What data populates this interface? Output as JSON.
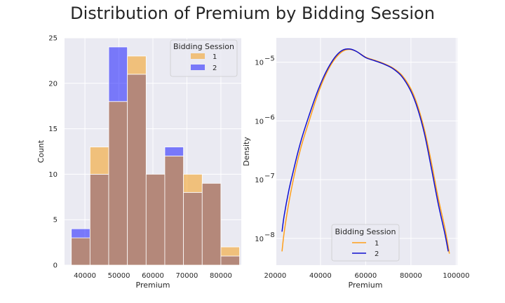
{
  "figure_title": "Distribution of Premium by Bidding Session",
  "colors": {
    "session1": "#f3a32b",
    "session2": "#1a1aff",
    "overlap": "#b4887a",
    "line1": "#ff9f1a",
    "line2": "#1010d0",
    "panel_bg": "#eaeaf2"
  },
  "chart_data": [
    {
      "type": "histogram",
      "xlabel": "Premium",
      "ylabel": "Count",
      "xlim": [
        34000,
        86000
      ],
      "ylim": [
        0,
        25
      ],
      "x_ticks": [
        40000,
        50000,
        60000,
        70000,
        80000
      ],
      "y_ticks": [
        0,
        5,
        10,
        15,
        20,
        25
      ],
      "bin_edges": [
        36000,
        41500,
        47000,
        52500,
        58000,
        63500,
        69000,
        74500,
        80000,
        85500
      ],
      "grid": true,
      "legend": {
        "title": "Bidding Session",
        "placement": "top-right",
        "entries": [
          "1",
          "2"
        ]
      },
      "series": [
        {
          "name": "1",
          "counts": [
            3,
            13,
            18,
            23,
            10,
            12,
            10,
            9,
            2
          ]
        },
        {
          "name": "2",
          "counts": [
            4,
            10,
            24,
            21,
            10,
            13,
            8,
            9,
            1
          ]
        }
      ]
    },
    {
      "type": "line",
      "xlabel": "Premium",
      "ylabel": "Density",
      "xscale": "linear",
      "yscale": "log",
      "xlim": [
        20500,
        100500
      ],
      "ylim": [
        3.5e-09,
        2.6e-05
      ],
      "x_ticks": [
        20000,
        40000,
        60000,
        80000,
        100000
      ],
      "y_ticks": [
        1e-08,
        1e-07,
        1e-06,
        1e-05
      ],
      "y_tick_labels": [
        "10",
        "10",
        "10",
        "10"
      ],
      "y_tick_exponents": [
        "−8",
        "−7",
        "−6",
        "−5"
      ],
      "grid": true,
      "legend": {
        "title": "Bidding Session",
        "placement": "bottom-center",
        "entries": [
          "1",
          "2"
        ]
      },
      "series": [
        {
          "name": "1",
          "x": [
            23000,
            24000,
            26000,
            28000,
            30000,
            32000,
            35000,
            38000,
            41000,
            44000,
            47000,
            50000,
            53000,
            56000,
            60000,
            64000,
            68000,
            72000,
            76000,
            80000,
            83000,
            86000,
            89000,
            92000,
            95000,
            97000
          ],
          "y": [
            6e-09,
            1.3e-08,
            4e-08,
            1e-07,
            2.2e-07,
            4.3e-07,
            1e-06,
            2.3e-06,
            4.7e-06,
            8.2e-06,
            1.22e-05,
            1.55e-05,
            1.65e-05,
            1.52e-05,
            1.22e-05,
            1.08e-05,
            9.5e-06,
            8e-06,
            6e-06,
            3.5e-06,
            1.8e-06,
            7e-07,
            2e-07,
            5e-08,
            1.5e-08,
            5.5e-09
          ]
        },
        {
          "name": "2",
          "x": [
            23000,
            24000,
            26000,
            28000,
            30000,
            32000,
            35000,
            38000,
            41000,
            44000,
            47000,
            50000,
            53000,
            56000,
            60000,
            64000,
            68000,
            72000,
            76000,
            80000,
            83000,
            86000,
            89000,
            92000,
            95000,
            96500
          ],
          "y": [
            1.3e-08,
            2.5e-08,
            6.5e-08,
            1.4e-07,
            2.9e-07,
            5.5e-07,
            1.25e-06,
            2.7e-06,
            5.2e-06,
            8.8e-06,
            1.3e-05,
            1.62e-05,
            1.68e-05,
            1.52e-05,
            1.2e-05,
            1.06e-05,
            9.3e-06,
            7.8e-06,
            5.7e-06,
            3.2e-06,
            1.6e-06,
            6e-07,
            1.6e-07,
            4e-08,
            1.2e-08,
            6e-09
          ]
        }
      ]
    }
  ]
}
